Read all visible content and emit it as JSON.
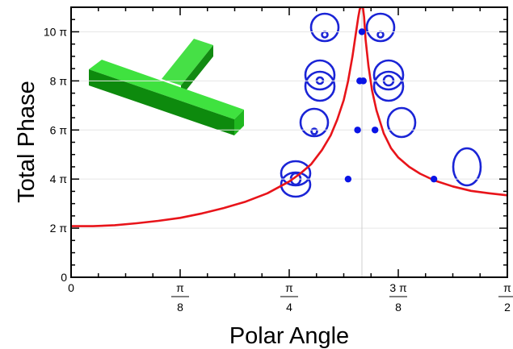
{
  "chart_data": {
    "type": "line",
    "xlabel": "Polar Angle",
    "ylabel": "Total Phase",
    "x_unit": "rad",
    "y_unit": "rad",
    "xlim": [
      0,
      1.5708
    ],
    "ylim": [
      0,
      34.5575
    ],
    "grid": true,
    "legend": "none",
    "asymptote_x": 1.0472,
    "x_ticks": [
      {
        "value": 0,
        "num": "0",
        "den": ""
      },
      {
        "value": 0.3927,
        "num": "π",
        "den": "8"
      },
      {
        "value": 0.7854,
        "num": "π",
        "den": "4"
      },
      {
        "value": 1.1781,
        "num": "3 π",
        "den": "8"
      },
      {
        "value": 1.5708,
        "num": "π",
        "den": "2"
      }
    ],
    "y_ticks": [
      {
        "value": 0,
        "label": "0"
      },
      {
        "value": 6.2832,
        "label": "2 π"
      },
      {
        "value": 12.5664,
        "label": "4 π"
      },
      {
        "value": 18.8496,
        "label": "6 π"
      },
      {
        "value": 25.1327,
        "label": "8 π"
      },
      {
        "value": 31.4159,
        "label": "10 π"
      }
    ],
    "series": [
      {
        "color": "#e8141a",
        "x": [
          0,
          0.0785,
          0.1571,
          0.2356,
          0.3142,
          0.3927,
          0.4712,
          0.5498,
          0.6283,
          0.7069,
          0.7854,
          0.8247,
          0.8639,
          0.9032,
          0.9346,
          0.9581,
          0.9817,
          0.9974,
          1.0131,
          1.0236,
          1.0341,
          1.0393,
          1.0437
        ],
        "y": [
          6.535,
          6.535,
          6.66,
          6.911,
          7.226,
          7.603,
          8.168,
          8.859,
          9.676,
          10.744,
          12.252,
          13.257,
          14.451,
          16.273,
          18.158,
          20.169,
          22.682,
          25.132,
          28.274,
          30.788,
          33.301,
          34.306,
          34.557
        ]
      },
      {
        "color": "#e8141a",
        "x": [
          1.0507,
          1.0551,
          1.0603,
          1.0708,
          1.0838,
          1.0995,
          1.1257,
          1.1519,
          1.1781,
          1.2174,
          1.2566,
          1.309,
          1.3744,
          1.4399,
          1.5053,
          1.5708
        ],
        "y": [
          34.557,
          33.301,
          30.473,
          27.018,
          23.877,
          21.363,
          18.41,
          16.524,
          15.331,
          14.137,
          13.257,
          12.378,
          11.624,
          11.059,
          10.744,
          10.493
        ]
      }
    ],
    "highlighted_points": [
      {
        "x": 0.9974,
        "y": 12.5664
      },
      {
        "x": 1.0315,
        "y": 18.8496
      },
      {
        "x": 1.0393,
        "y": 25.1327
      },
      {
        "x": 1.0472,
        "y": 31.4159
      },
      {
        "x": 1.0524,
        "y": 25.1327
      },
      {
        "x": 1.0943,
        "y": 18.8496
      },
      {
        "x": 1.3064,
        "y": 12.5664
      }
    ],
    "point_color": "#0a14e6",
    "loop_color": "#1a24d6",
    "inset_color": "#1ecb1e"
  }
}
